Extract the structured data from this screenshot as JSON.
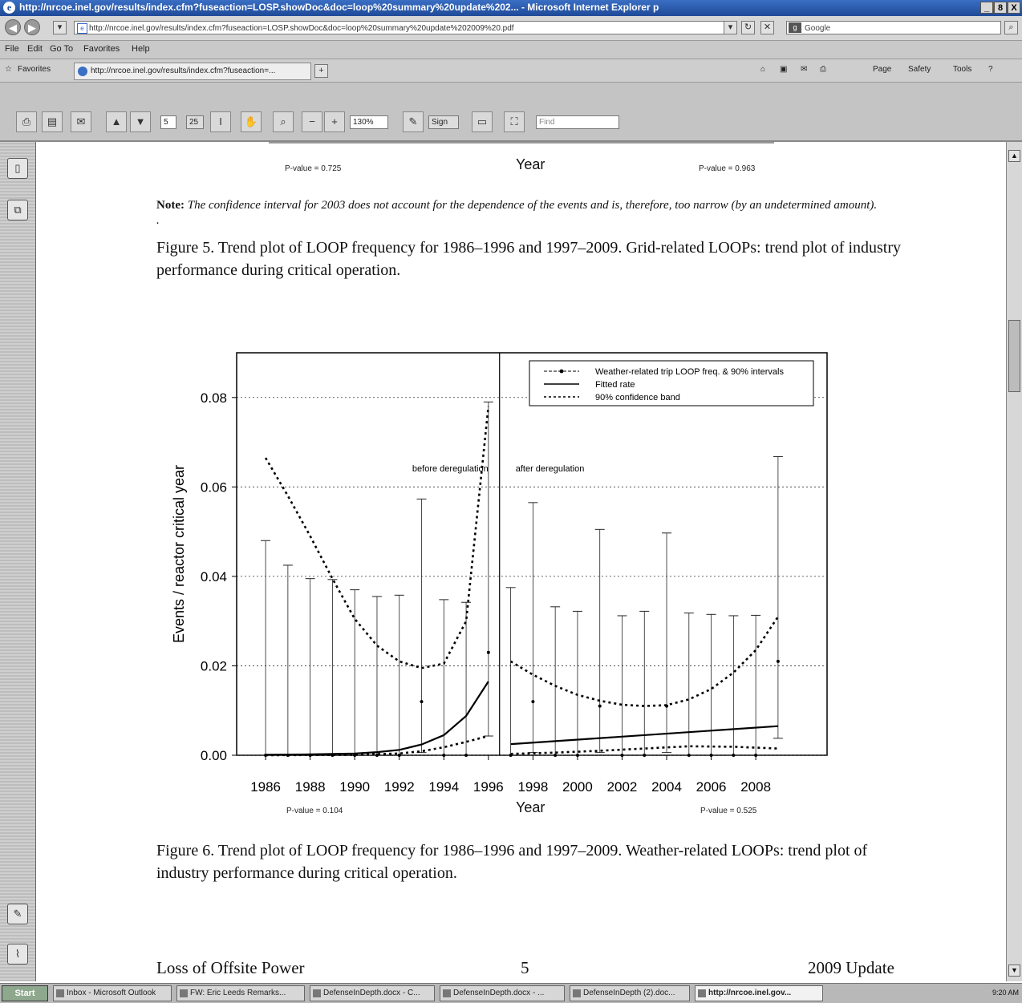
{
  "window": {
    "title": "http://nrcoe.inel.gov/results/index.cfm?fuseaction=LOSP.showDoc&doc=loop%20summary%20update%202... - Microsoft Internet Explorer p",
    "minimize": "_",
    "maximize": "8",
    "close": "X"
  },
  "address_bar": {
    "url": "http://nrcoe.inel.gov/results/index.cfm?fuseaction=LOSP.showDoc&doc=loop%20summary%20update%202009%20.pdf",
    "search_placeholder": "Google"
  },
  "menu": [
    "File",
    "Edit",
    "Go To",
    "Favorites",
    "Help"
  ],
  "favorites": {
    "label": "Favorites",
    "tab_title": "http://nrcoe.inel.gov/results/index.cfm?fuseaction=...",
    "commands": [
      "Page",
      "Safety",
      "Tools"
    ]
  },
  "pdf_toolbar": {
    "page": "5",
    "page_count": "25",
    "zoom": "130%",
    "sign": "Sign",
    "find_placeholder": "Find"
  },
  "document": {
    "top_pvalue_left": "P-value = 0.725",
    "top_year": "Year",
    "top_pvalue_right": "P-value = 0.963",
    "note_label": "Note:",
    "note_text": "The confidence interval for 2003 does not account for the dependence of the events and is, therefore, too narrow (by an undetermined amount). .",
    "fig5_caption": "Figure 5.  Trend plot of LOOP frequency for 1986–1996 and 1997–2009.  Grid-related LOOPs: trend plot of industry performance during critical operation.",
    "fig6_caption": "Figure 6.  Trend plot of LOOP frequency for 1986–1996 and 1997–2009.  Weather-related LOOPs: trend plot of industry performance during critical operation.",
    "pvalue_left": "P-value = 0.104",
    "pvalue_right": "P-value = 0.525",
    "footer_left": "Loss of Offsite Power",
    "footer_page": "5",
    "footer_right": "2009 Update"
  },
  "chart_data": {
    "type": "line",
    "ylabel": "Events / reactor critical year",
    "xlabel": "Year",
    "ylim": [
      0,
      0.09
    ],
    "xlim": [
      1984.7,
      2011.2
    ],
    "yticks": [
      "0.00",
      "0.02",
      "0.04",
      "0.06",
      "0.08"
    ],
    "xticks": [
      "1986",
      "1988",
      "1990",
      "1992",
      "1994",
      "1996",
      "1998",
      "2000",
      "2002",
      "2004",
      "2006",
      "2008"
    ],
    "grid": true,
    "split_year": 1996.5,
    "legend_position": "top-right",
    "legend": [
      "Weather-related trip LOOP freq. & 90% intervals",
      "Fitted rate",
      "90% confidence band"
    ],
    "annotations": [
      "before deregulation",
      "after deregulation"
    ],
    "points": {
      "x": [
        1986,
        1987,
        1988,
        1989,
        1990,
        1991,
        1992,
        1993,
        1994,
        1995,
        1996,
        1997,
        1998,
        1999,
        2000,
        2001,
        2002,
        2003,
        2004,
        2005,
        2006,
        2007,
        2008,
        2009
      ],
      "y": [
        0,
        0,
        0,
        0,
        0,
        0,
        0,
        0.012,
        0,
        0,
        0.023,
        0,
        0.012,
        0,
        0,
        0.011,
        0,
        0,
        0.011,
        0,
        0,
        0,
        0,
        0.021
      ]
    },
    "interval_upper": [
      0.048,
      0.0425,
      0.0395,
      0.0393,
      0.037,
      0.0355,
      0.0358,
      0.0573,
      0.0348,
      0.0342,
      0.079,
      0.0375,
      0.0565,
      0.0332,
      0.0322,
      0.0505,
      0.0312,
      0.0322,
      0.0497,
      0.0318,
      0.0315,
      0.0312,
      0.0313,
      0.0668
    ],
    "interval_lower": [
      0,
      0,
      0,
      0,
      0,
      0,
      0,
      0.0006,
      0,
      0,
      0.0043,
      0,
      0.0006,
      0,
      0,
      0.0006,
      0,
      0,
      0.0006,
      0,
      0,
      0,
      0,
      0.0038
    ],
    "fitted_before": {
      "x": [
        1986,
        1988,
        1990,
        1991,
        1992,
        1993,
        1994,
        1995,
        1996
      ],
      "y": [
        0.0001,
        0.0002,
        0.0004,
        0.0007,
        0.0012,
        0.0024,
        0.0045,
        0.0088,
        0.0165
      ]
    },
    "band_before_upper": {
      "x": [
        1986,
        1987,
        1988,
        1989,
        1990,
        1991,
        1992,
        1993,
        1994,
        1995,
        1996
      ],
      "y": [
        0.0665,
        0.058,
        0.049,
        0.0395,
        0.0305,
        0.0245,
        0.021,
        0.0195,
        0.0205,
        0.03,
        0.078
      ]
    },
    "band_before_lower": {
      "x": [
        1986,
        1990,
        1992,
        1993,
        1994,
        1995,
        1996
      ],
      "y": [
        0,
        0.0001,
        0.0004,
        0.0009,
        0.0018,
        0.003,
        0.0043
      ]
    },
    "fitted_after": {
      "x": [
        1997,
        2009
      ],
      "y": [
        0.0025,
        0.0065
      ]
    },
    "band_after_upper": {
      "x": [
        1997,
        1998,
        1999,
        2000,
        2001,
        2002,
        2003,
        2004,
        2005,
        2006,
        2007,
        2008,
        2009
      ],
      "y": [
        0.021,
        0.018,
        0.0155,
        0.0135,
        0.0122,
        0.0113,
        0.011,
        0.0112,
        0.0125,
        0.0148,
        0.0185,
        0.0235,
        0.031
      ]
    },
    "band_after_lower": {
      "x": [
        1997,
        1999,
        2001,
        2003,
        2005,
        2007,
        2009
      ],
      "y": [
        0.0003,
        0.0006,
        0.001,
        0.0015,
        0.002,
        0.0019,
        0.0015
      ]
    }
  },
  "taskbar": {
    "start": "Start",
    "tasks": [
      "Inbox - Microsoft Outlook",
      "FW: Eric Leeds Remarks...",
      "DefenseInDepth.docx - C...",
      "DefenseInDepth.docx - ...",
      "DefenseInDepth (2).doc...",
      "http://nrcoe.inel.gov..."
    ],
    "clock": "9:20 AM"
  }
}
